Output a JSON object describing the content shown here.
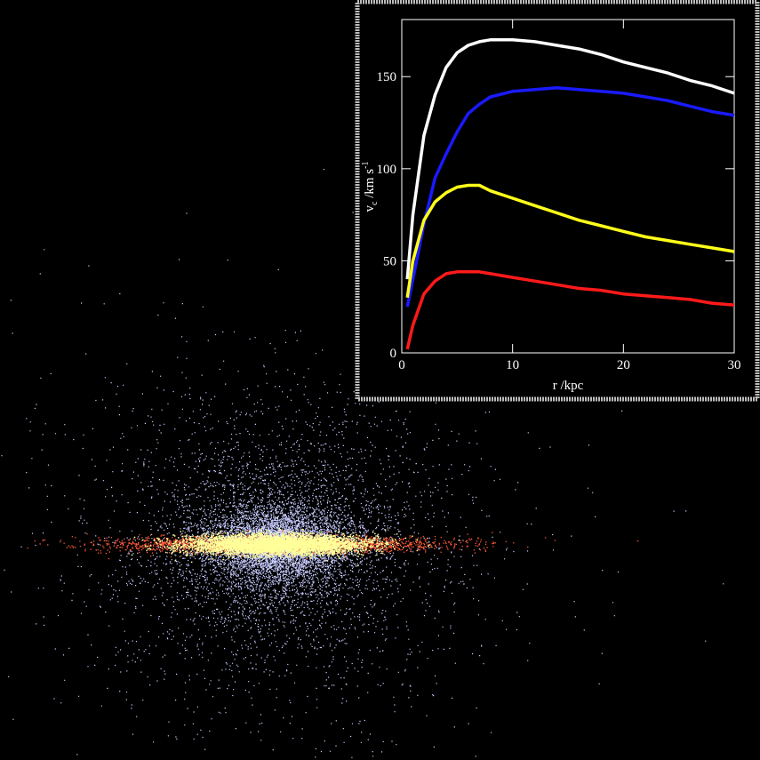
{
  "chart_data": {
    "type": "line",
    "x_label": "r /kpc",
    "y_label": [
      "v",
      "c",
      " /km s",
      "-1"
    ],
    "x": [
      0.5,
      1,
      2,
      3,
      4,
      5,
      6,
      7,
      8,
      10,
      12,
      14,
      16,
      18,
      20,
      22,
      24,
      26,
      28,
      30
    ],
    "series": [
      {
        "color": "#ffffff",
        "values": [
          40,
          75,
          118,
          140,
          155,
          163,
          167,
          169,
          170,
          170,
          169,
          167,
          165,
          162,
          158,
          155,
          152,
          148,
          145,
          141
        ]
      },
      {
        "color": "#1a1aff",
        "values": [
          25,
          40,
          70,
          95,
          108,
          120,
          130,
          135,
          139,
          142,
          143,
          144,
          143,
          142,
          141,
          139,
          137,
          134,
          131,
          129
        ]
      },
      {
        "color": "#ffff1a",
        "values": [
          30,
          50,
          72,
          82,
          87,
          90,
          91,
          91,
          88,
          84,
          80,
          76,
          72,
          69,
          66,
          63,
          61,
          59,
          57,
          55
        ]
      },
      {
        "color": "#ff1a1a",
        "values": [
          2,
          15,
          32,
          39,
          43,
          44,
          44,
          44,
          43,
          41,
          39,
          37,
          35,
          34,
          32,
          31,
          30,
          29,
          27,
          26
        ]
      }
    ],
    "xlim": [
      0,
      30
    ],
    "xticks": [
      0,
      10,
      20,
      30
    ],
    "ylim": [
      0,
      181
    ],
    "yticks": [
      0,
      50,
      100,
      150
    ]
  }
}
